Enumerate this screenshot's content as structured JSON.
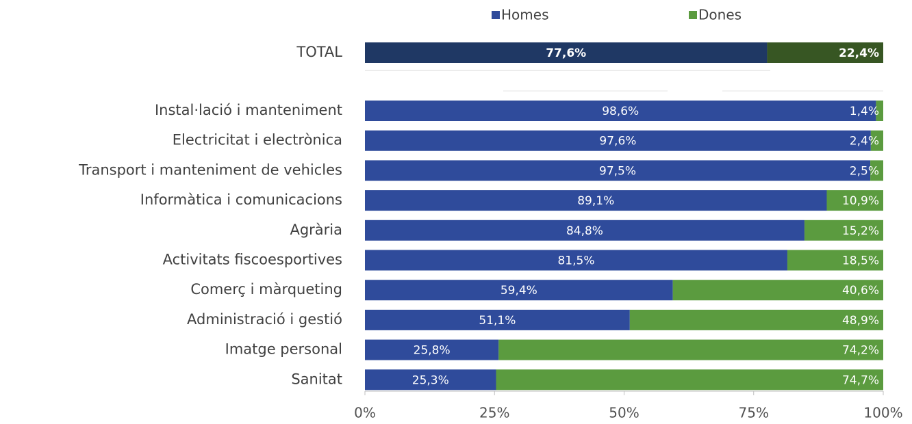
{
  "chart_data": {
    "type": "bar",
    "orientation": "horizontal",
    "stacked": true,
    "legend": "top",
    "categories": [
      "TOTAL",
      "Instal·lació i manteniment",
      "Electricitat i electrònica",
      "Transport i manteniment de vehicles",
      "Informàtica i comunicacions",
      "Agrària",
      "Activitats fiscoesportives",
      "Comerç i màrqueting",
      "Administració i gestió",
      "Imatge personal",
      "Sanitat"
    ],
    "series": [
      {
        "name": "Homes",
        "color": "#2f4b9b",
        "colors": [
          "#1f3864",
          "#2f4b9b",
          "#2f4b9b",
          "#2f4b9b",
          "#2f4b9b",
          "#2f4b9b",
          "#2f4b9b",
          "#2f4b9b",
          "#2f4b9b",
          "#2f4b9b",
          "#2f4b9b"
        ],
        "values": [
          77.6,
          98.6,
          97.6,
          97.5,
          89.1,
          84.8,
          81.5,
          59.4,
          51.1,
          25.8,
          25.3
        ],
        "value_labels": [
          "77,6%",
          "98,6%",
          "97,6%",
          "97,5%",
          "89,1%",
          "84,8%",
          "81,5%",
          "59,4%",
          "51,1%",
          "25,8%",
          "25,3%"
        ]
      },
      {
        "name": "Dones",
        "color": "#5b9b3f",
        "colors": [
          "#375623",
          "#5b9b3f",
          "#5b9b3f",
          "#5b9b3f",
          "#5b9b3f",
          "#5b9b3f",
          "#5b9b3f",
          "#5b9b3f",
          "#5b9b3f",
          "#5b9b3f",
          "#5b9b3f"
        ],
        "values": [
          22.4,
          1.4,
          2.4,
          2.5,
          10.9,
          15.2,
          18.5,
          40.6,
          48.9,
          74.2,
          74.7
        ],
        "value_labels": [
          "22,4%",
          "1,4%",
          "2,4%",
          "2,5%",
          "10,9%",
          "15,2%",
          "18,5%",
          "40,6%",
          "48,9%",
          "74,2%",
          "74,7%"
        ]
      }
    ],
    "xlim": [
      0,
      100
    ],
    "xticks": [
      {
        "value": 0,
        "label": "0%"
      },
      {
        "value": 25,
        "label": "25%"
      },
      {
        "value": 50,
        "label": "50%"
      },
      {
        "value": 75,
        "label": "75%"
      },
      {
        "value": 100,
        "label": "100%"
      }
    ]
  }
}
